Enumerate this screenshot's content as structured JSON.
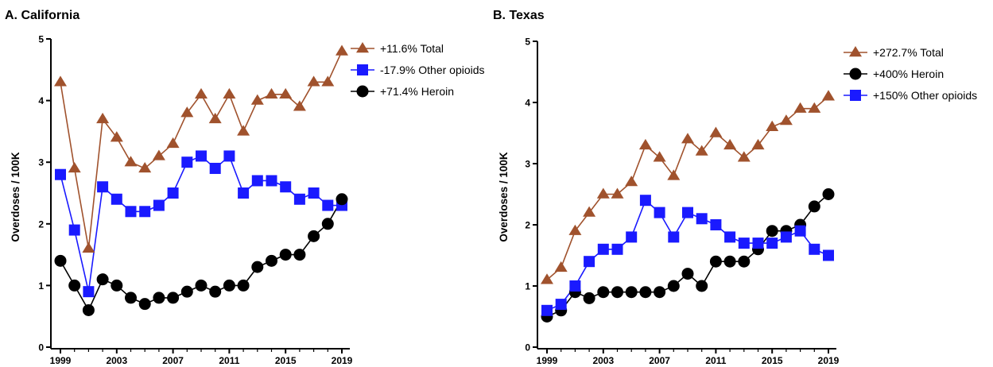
{
  "chart_data": [
    {
      "type": "line",
      "title": "A. California",
      "ylabel": "Overdoses / 100K",
      "xlabel": "",
      "x": [
        1999,
        2000,
        2001,
        2002,
        2003,
        2004,
        2005,
        2006,
        2007,
        2008,
        2009,
        2010,
        2011,
        2012,
        2013,
        2014,
        2015,
        2016,
        2017,
        2018,
        2019
      ],
      "xticks": [
        1999,
        2003,
        2007,
        2011,
        2015,
        2019
      ],
      "ylim": [
        0,
        5
      ],
      "yticks": [
        0,
        1,
        2,
        3,
        4,
        5
      ],
      "legend_position": "top-right",
      "series": [
        {
          "key": "total",
          "name": "+11.6% Total",
          "marker": "triangle",
          "color": "#a0522d",
          "values": [
            4.3,
            2.9,
            1.6,
            3.7,
            3.4,
            3.0,
            2.9,
            3.1,
            3.3,
            3.8,
            4.1,
            3.7,
            4.1,
            3.5,
            4.0,
            4.1,
            4.1,
            3.9,
            4.3,
            4.3,
            4.8
          ]
        },
        {
          "key": "other",
          "name": "-17.9% Other opioids",
          "marker": "square",
          "color": "#1a1aff",
          "values": [
            2.8,
            1.9,
            0.9,
            2.6,
            2.4,
            2.2,
            2.2,
            2.3,
            2.5,
            3.0,
            3.1,
            2.9,
            3.1,
            2.5,
            2.7,
            2.7,
            2.6,
            2.4,
            2.5,
            2.3,
            2.3
          ]
        },
        {
          "key": "heroin",
          "name": "+71.4% Heroin",
          "marker": "circle",
          "color": "#000000",
          "values": [
            1.4,
            1.0,
            0.6,
            1.1,
            1.0,
            0.8,
            0.7,
            0.8,
            0.8,
            0.9,
            1.0,
            0.9,
            1.0,
            1.0,
            1.3,
            1.4,
            1.5,
            1.5,
            1.8,
            2.0,
            2.4
          ]
        }
      ]
    },
    {
      "type": "line",
      "title": "B. Texas",
      "ylabel": "Overdoses / 100K",
      "xlabel": "",
      "x": [
        1999,
        2000,
        2001,
        2002,
        2003,
        2004,
        2005,
        2006,
        2007,
        2008,
        2009,
        2010,
        2011,
        2012,
        2013,
        2014,
        2015,
        2016,
        2017,
        2018,
        2019
      ],
      "xticks": [
        1999,
        2003,
        2007,
        2011,
        2015,
        2019
      ],
      "ylim": [
        0,
        5
      ],
      "yticks": [
        0,
        1,
        2,
        3,
        4,
        5
      ],
      "legend_position": "top-right",
      "series": [
        {
          "key": "total",
          "name": "+272.7% Total",
          "marker": "triangle",
          "color": "#a0522d",
          "values": [
            1.1,
            1.3,
            1.9,
            2.2,
            2.5,
            2.5,
            2.7,
            3.3,
            3.1,
            2.8,
            3.4,
            3.2,
            3.5,
            3.3,
            3.1,
            3.3,
            3.6,
            3.7,
            3.9,
            3.9,
            4.1
          ]
        },
        {
          "key": "heroin",
          "name": "+400% Heroin",
          "marker": "circle",
          "color": "#000000",
          "values": [
            0.5,
            0.6,
            0.9,
            0.8,
            0.9,
            0.9,
            0.9,
            0.9,
            0.9,
            1.0,
            1.2,
            1.0,
            1.4,
            1.4,
            1.4,
            1.6,
            1.9,
            1.9,
            2.0,
            2.3,
            2.5
          ]
        },
        {
          "key": "other",
          "name": "+150% Other opioids",
          "marker": "square",
          "color": "#1a1aff",
          "values": [
            0.6,
            0.7,
            1.0,
            1.4,
            1.6,
            1.6,
            1.8,
            2.4,
            2.2,
            1.8,
            2.2,
            2.1,
            2.0,
            1.8,
            1.7,
            1.7,
            1.7,
            1.8,
            1.9,
            1.6,
            1.5
          ]
        }
      ]
    }
  ]
}
